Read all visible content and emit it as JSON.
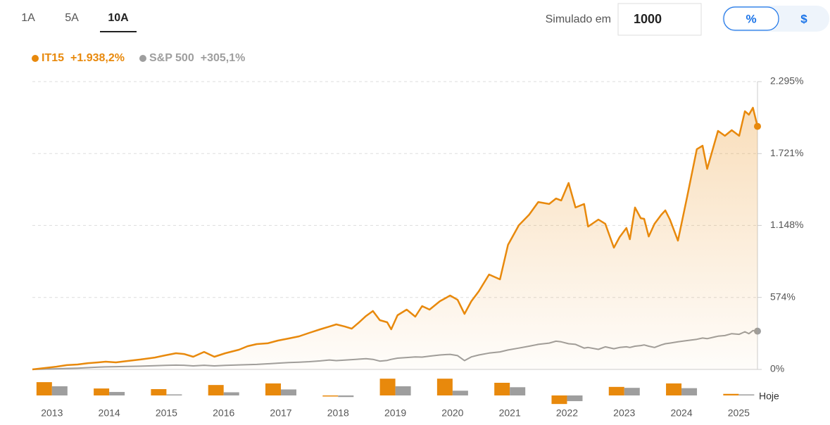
{
  "controls": {
    "tabs": [
      "1A",
      "5A",
      "10A"
    ],
    "active_tab": 2,
    "simulate_label": "Simulado em",
    "simulate_value": "1000",
    "units": [
      "%",
      "$"
    ],
    "active_unit": 0
  },
  "chart_data": {
    "type": "line",
    "x": [
      2012.83,
      2013.25,
      2013.43,
      2013.62,
      2013.8,
      2013.98,
      2014.11,
      2014.29,
      2014.48,
      2014.72,
      2014.97,
      2015.15,
      2015.34,
      2015.48,
      2015.64,
      2015.83,
      2016.01,
      2016.2,
      2016.44,
      2016.59,
      2016.75,
      2016.94,
      2017.12,
      2017.31,
      2017.49,
      2017.67,
      2017.86,
      2018.02,
      2018.14,
      2018.29,
      2018.41,
      2018.54,
      2018.66,
      2018.78,
      2018.9,
      2019.03,
      2019.1,
      2019.21,
      2019.37,
      2019.52,
      2019.64,
      2019.77,
      2019.95,
      2020.13,
      2020.26,
      2020.38,
      2020.5,
      2020.63,
      2020.81,
      2021.0,
      2021.14,
      2021.33,
      2021.51,
      2021.67,
      2021.86,
      2021.98,
      2022.07,
      2022.2,
      2022.32,
      2022.47,
      2022.54,
      2022.72,
      2022.84,
      2022.99,
      2023.09,
      2023.21,
      2023.27,
      2023.36,
      2023.46,
      2023.52,
      2023.6,
      2023.7,
      2023.82,
      2023.89,
      2023.97,
      2024.11,
      2024.27,
      2024.44,
      2024.54,
      2024.62,
      2024.81,
      2024.93,
      2025.05,
      2025.18,
      2025.28,
      2025.35,
      2025.42,
      2025.5
    ],
    "series": [
      {
        "name": "IT15",
        "change_label": "+1.938,2%",
        "color": "#e8890c",
        "values": [
          0,
          22,
          34,
          39,
          50,
          56,
          62,
          56,
          67,
          79,
          95,
          112,
          129,
          123,
          101,
          140,
          101,
          129,
          157,
          185,
          202,
          208,
          230,
          247,
          264,
          292,
          320,
          342,
          359,
          342,
          325,
          376,
          426,
          466,
          393,
          376,
          320,
          432,
          477,
          421,
          505,
          477,
          544,
          589,
          555,
          443,
          544,
          623,
          757,
          718,
          993,
          1150,
          1234,
          1335,
          1319,
          1363,
          1347,
          1487,
          1291,
          1319,
          1139,
          1195,
          1161,
          971,
          1055,
          1128,
          1038,
          1291,
          1206,
          1201,
          1060,
          1161,
          1234,
          1268,
          1195,
          1027,
          1375,
          1756,
          1784,
          1599,
          1902,
          1863,
          1908,
          1863,
          2059,
          2031,
          2087,
          1938.2
        ],
        "annual_values": [
          42,
          22,
          20,
          33,
          38,
          -2,
          53,
          53,
          40,
          -27,
          27,
          38,
          5
        ]
      },
      {
        "name": "S&P 500",
        "change_label": "+305,1%",
        "color": "#9e9e9e",
        "values": [
          0,
          5,
          8,
          10,
          14,
          18,
          20,
          22,
          24,
          26,
          30,
          32,
          34,
          33,
          28,
          33,
          28,
          32,
          36,
          38,
          40,
          45,
          50,
          55,
          58,
          62,
          68,
          75,
          70,
          74,
          78,
          82,
          86,
          80,
          66,
          72,
          80,
          90,
          95,
          100,
          98,
          106,
          115,
          120,
          110,
          70,
          100,
          115,
          130,
          140,
          155,
          170,
          185,
          200,
          210,
          225,
          220,
          205,
          200,
          170,
          175,
          160,
          180,
          165,
          175,
          180,
          175,
          185,
          190,
          195,
          185,
          175,
          195,
          205,
          210,
          220,
          230,
          240,
          250,
          245,
          265,
          270,
          285,
          280,
          300,
          285,
          310,
          305.1
        ],
        "annual_values": [
          29,
          11,
          1,
          10,
          19,
          -5,
          29,
          15,
          26,
          -18,
          24,
          23,
          3
        ]
      }
    ],
    "xlim": [
      2012.83,
      2025.5
    ],
    "xticks": [
      2013,
      2014,
      2015,
      2016,
      2017,
      2018,
      2019,
      2020,
      2021,
      2022,
      2023,
      2024,
      2025
    ],
    "ylim": [
      0,
      2295
    ],
    "yticks": [
      {
        "value": 0,
        "label": "0%"
      },
      {
        "value": 574,
        "label": "574%"
      },
      {
        "value": 1148,
        "label": "1.148%"
      },
      {
        "value": 1721,
        "label": "1.721%"
      },
      {
        "value": 2295,
        "label": "2.295%"
      }
    ],
    "grid": true,
    "area_fill": true,
    "today_label": "Hoje"
  }
}
